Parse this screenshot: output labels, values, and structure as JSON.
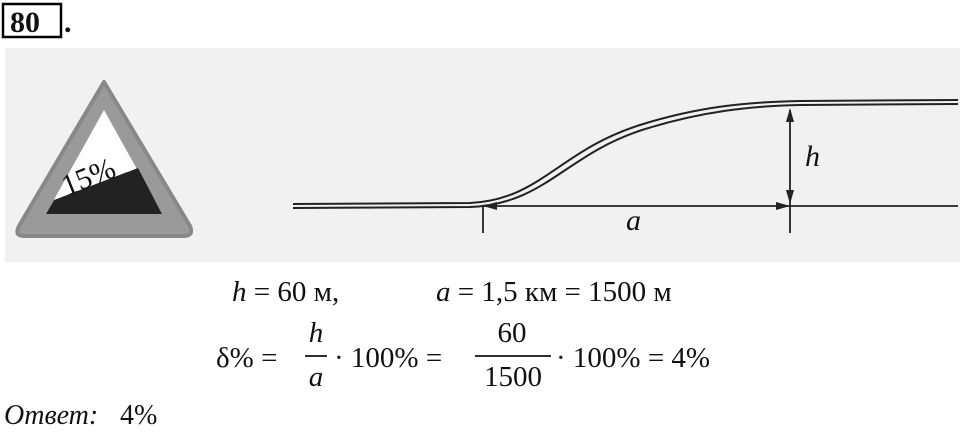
{
  "problem": {
    "number": "80",
    "dot": "."
  },
  "figure": {
    "sign_label": "15%",
    "height_label": "h",
    "distance_label": "a"
  },
  "given": [
    {
      "var": "h",
      "rest": " = 60 м,"
    },
    {
      "var": "a",
      "rest": " = 1,5 км = 1500 м"
    }
  ],
  "formula": {
    "lhs": "δ% =",
    "frac1": {
      "num": "h",
      "den": "a"
    },
    "mid": "· 100% =",
    "frac2": {
      "num": "60",
      "den": "1500"
    },
    "rhs": "· 100% = 4%"
  },
  "answer": {
    "label": "Ответ:",
    "value": "4%"
  }
}
